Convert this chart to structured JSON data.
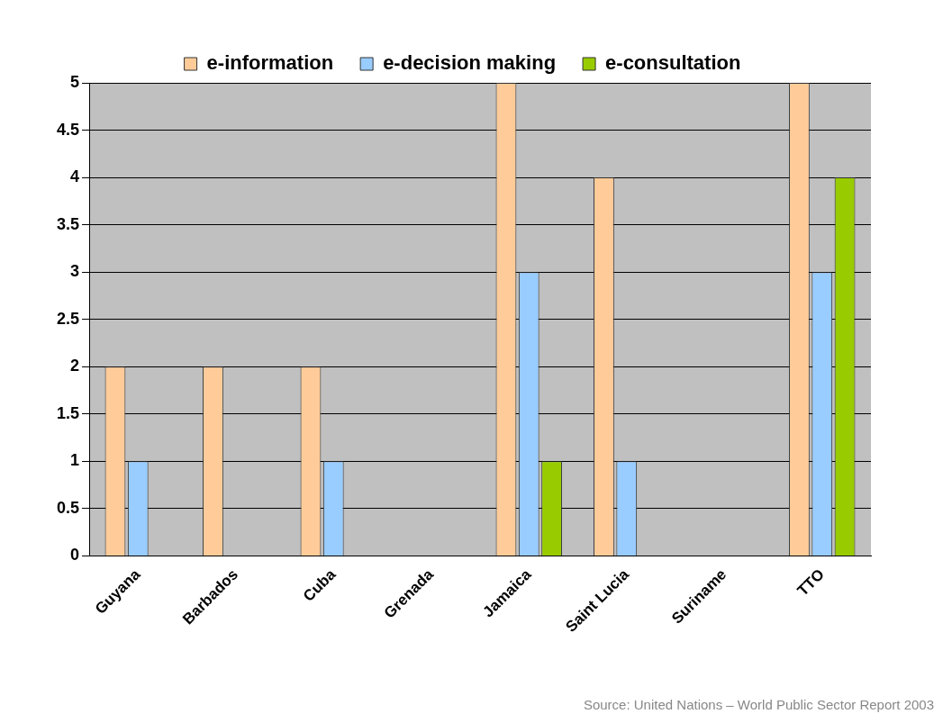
{
  "chart_data": {
    "type": "bar",
    "categories": [
      "Guyana",
      "Barbados",
      "Cuba",
      "Grenada",
      "Jamaica",
      "Saint Lucia",
      "Suriname",
      "TTO"
    ],
    "series": [
      {
        "name": "e-information",
        "color": "#ffcc99",
        "values": [
          2,
          2,
          2,
          0,
          5,
          4,
          0,
          5
        ]
      },
      {
        "name": "e-decision making",
        "color": "#99ccff",
        "values": [
          1,
          0,
          1,
          0,
          3,
          1,
          0,
          3
        ]
      },
      {
        "name": "e-consultation",
        "color": "#99cc00",
        "values": [
          0,
          0,
          0,
          0,
          1,
          0,
          0,
          4
        ]
      }
    ],
    "ylim": [
      0,
      5
    ],
    "yticks": [
      0,
      0.5,
      1,
      1.5,
      2,
      2.5,
      3,
      3.5,
      4,
      4.5,
      5
    ],
    "grid": "y",
    "legend": "top",
    "annotations": [
      "Source: United Nations – World Public Sector Report 2003"
    ]
  }
}
